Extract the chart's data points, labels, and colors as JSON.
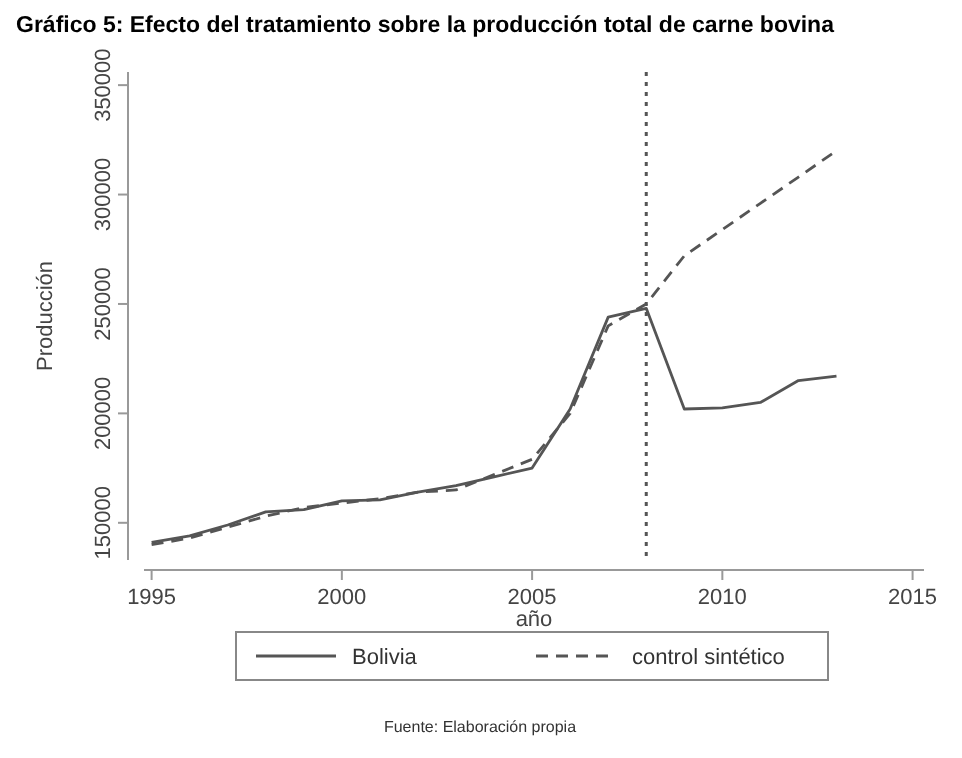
{
  "chart_data": {
    "type": "line",
    "title": "Gráfico 5: Efecto del tratamiento sobre la producción total de carne bovina",
    "xlabel": "año",
    "ylabel": "Producción",
    "annotations": [
      "Fuente: Elaboración propia"
    ],
    "x": [
      1995,
      1996,
      1997,
      1998,
      1999,
      2000,
      2001,
      2002,
      2003,
      2004,
      2005,
      2006,
      2007,
      2008,
      2009,
      2010,
      2011,
      2012,
      2013
    ],
    "series": [
      {
        "name": "Bolivia",
        "color": "#555555",
        "line_style": "solid",
        "values": [
          141000,
          144000,
          149000,
          155000,
          156000,
          160000,
          160500,
          164000,
          167000,
          171000,
          175000,
          202000,
          244000,
          248000,
          202000,
          202500,
          205000,
          215000,
          217000
        ]
      },
      {
        "name": "control sintético",
        "color": "#555555",
        "line_style": "dashed",
        "values": [
          140000,
          143000,
          148000,
          153000,
          157000,
          159000,
          161000,
          164000,
          165000,
          172000,
          179000,
          200000,
          240000,
          250000,
          272000,
          284000,
          296000,
          308000,
          320000
        ]
      }
    ],
    "xlim": [
      1994.8,
      2015.3
    ],
    "xticks": [
      1995,
      2000,
      2005,
      2010,
      2015
    ],
    "ylim": [
      133000,
      356000
    ],
    "yticks": [
      150000,
      200000,
      250000,
      300000,
      350000
    ],
    "ref_lines": [
      {
        "axis": "x",
        "value": 2008,
        "color": "#555555",
        "line_style": "dotted"
      }
    ],
    "legend": "bottom",
    "grid": false,
    "marker": "none"
  }
}
